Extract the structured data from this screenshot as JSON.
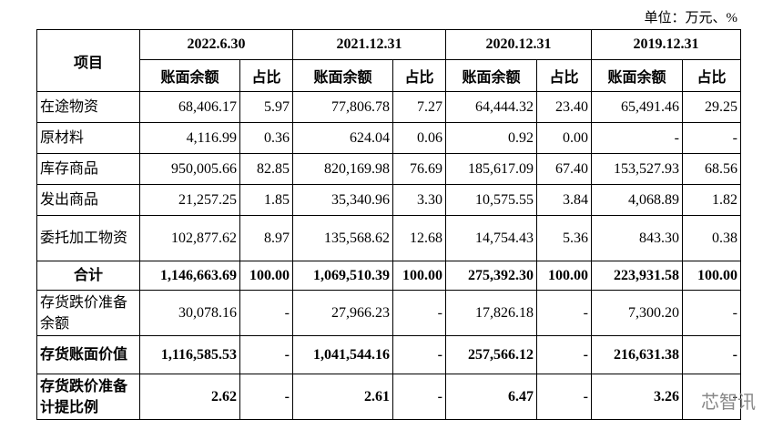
{
  "unit": "单位：万元、%",
  "table": {
    "corner": "项目",
    "periods": [
      "2022.6.30",
      "2021.12.31",
      "2020.12.31",
      "2019.12.31"
    ],
    "subheaders": [
      "账面余额",
      "占比",
      "账面余额",
      "占比",
      "账面余额",
      "占比",
      "账面余额",
      "占比"
    ],
    "rows": [
      [
        "在途物资",
        "68,406.17",
        "5.97",
        "77,806.78",
        "7.27",
        "64,444.32",
        "23.40",
        "65,491.46",
        "29.25"
      ],
      [
        "原材料",
        "4,116.99",
        "0.36",
        "624.04",
        "0.06",
        "0.92",
        "0.00",
        "-",
        "-"
      ],
      [
        "库存商品",
        "950,005.66",
        "82.85",
        "820,169.98",
        "76.69",
        "185,617.09",
        "67.40",
        "153,527.93",
        "68.56"
      ],
      [
        "发出商品",
        "21,257.25",
        "1.85",
        "35,340.96",
        "3.30",
        "10,575.55",
        "3.84",
        "4,068.89",
        "1.82"
      ],
      [
        "委托加工物资",
        "102,877.62",
        "8.97",
        "135,568.62",
        "12.68",
        "14,754.43",
        "5.36",
        "843.30",
        "0.38"
      ],
      [
        "合计",
        "1,146,663.69",
        "100.00",
        "1,069,510.39",
        "100.00",
        "275,392.30",
        "100.00",
        "223,931.58",
        "100.00"
      ],
      [
        "存货跌价准备余额",
        "30,078.16",
        "-",
        "27,966.23",
        "-",
        "17,826.18",
        "-",
        "7,300.20",
        "-"
      ],
      [
        "存货账面价值",
        "1,116,585.53",
        "-",
        "1,041,544.16",
        "-",
        "257,566.12",
        "-",
        "216,631.38",
        "-"
      ],
      [
        "存货跌价准备计提比例",
        "2.62",
        "-",
        "2.61",
        "-",
        "6.47",
        "-",
        "3.26",
        "-"
      ]
    ]
  },
  "watermark": "芯智讯"
}
